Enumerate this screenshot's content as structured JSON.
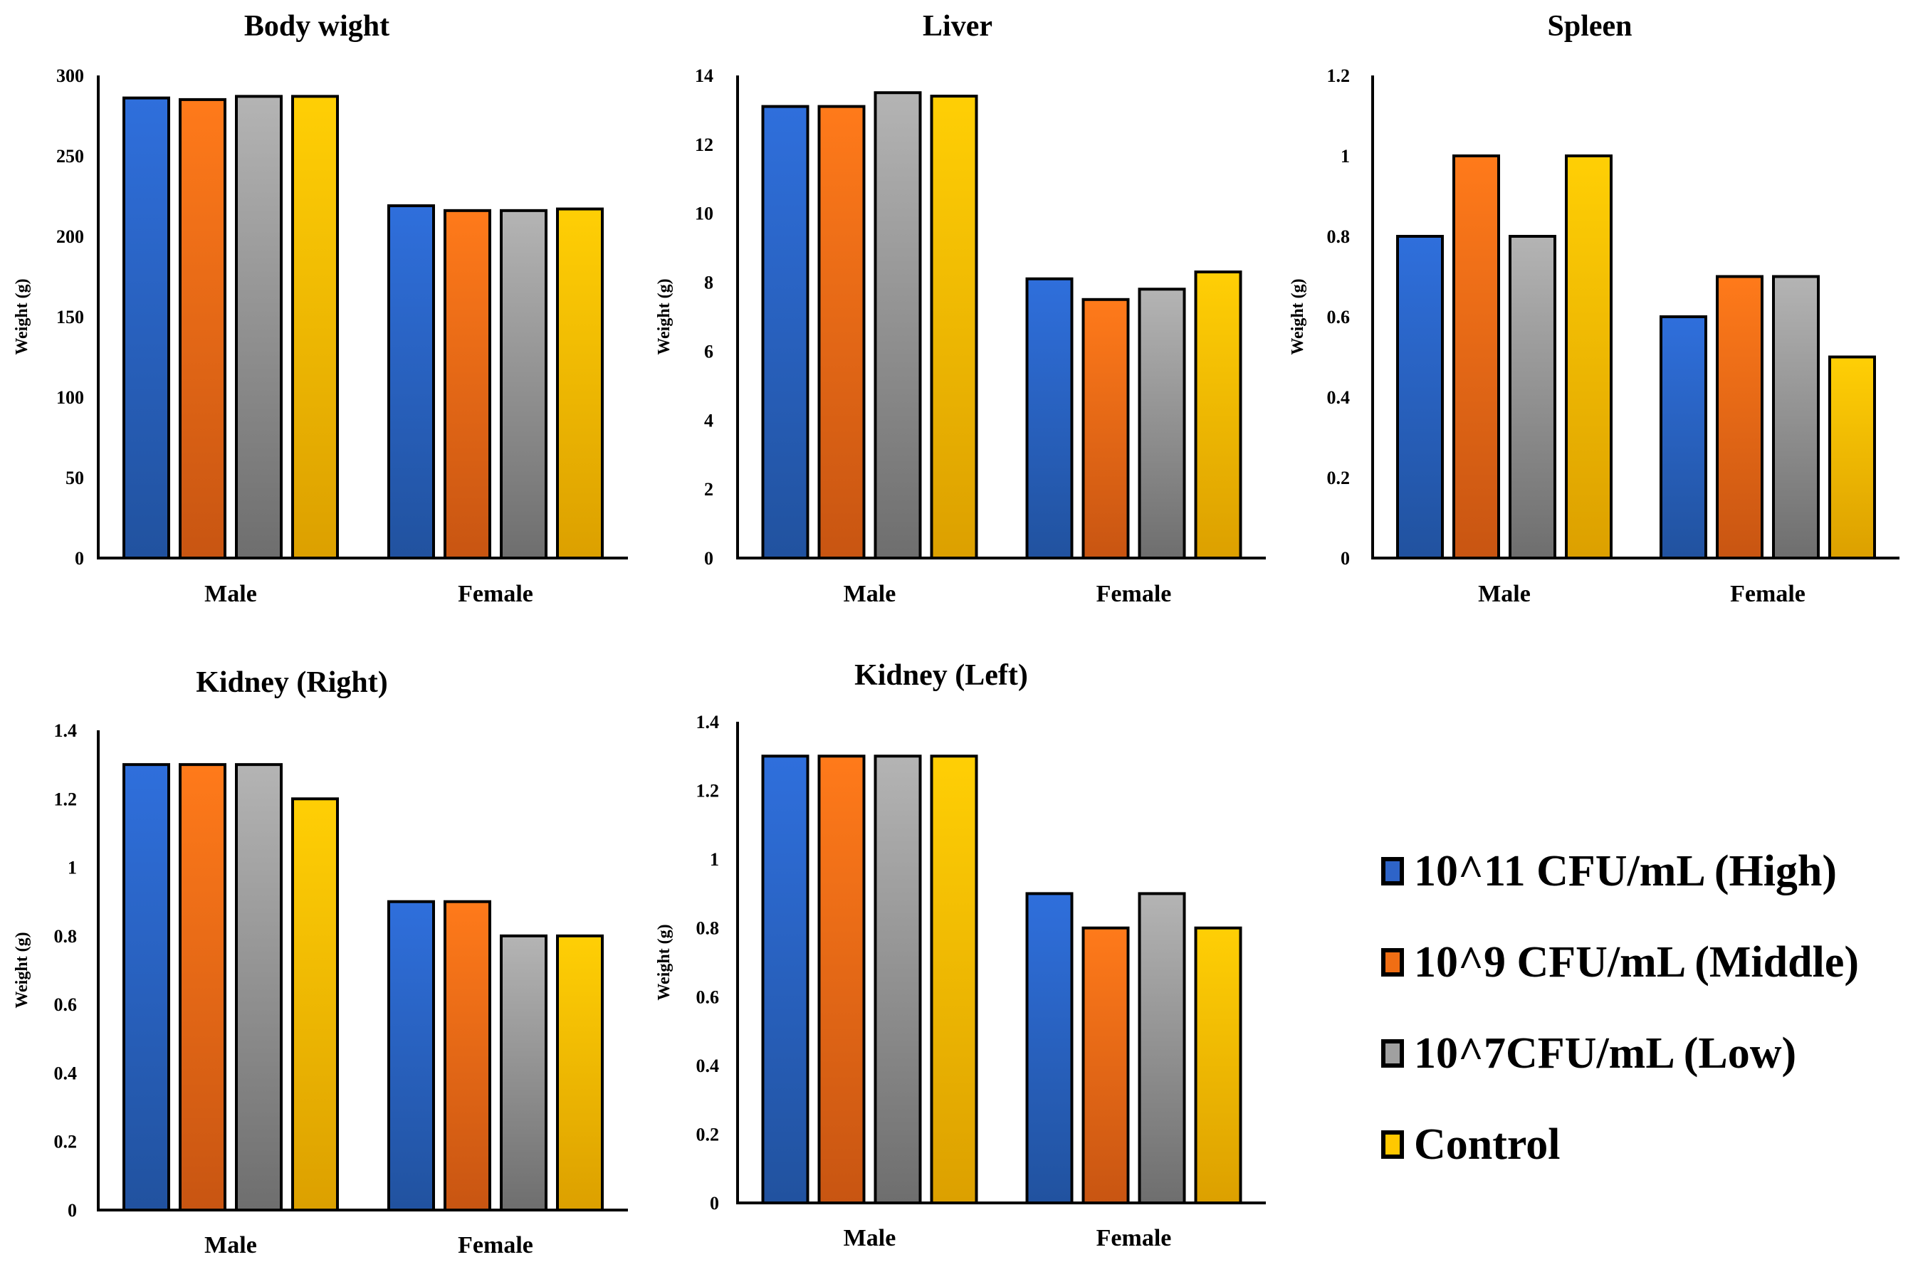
{
  "legend": {
    "items": [
      {
        "label": "10^11 CFU/mL (High)",
        "color": "#2E64C8"
      },
      {
        "label": "10^9 CFU/mL (Middle)",
        "color": "#F06E14"
      },
      {
        "label": "10^7CFU/mL (Low)",
        "color": "#A0A0A0"
      },
      {
        "label": "Control",
        "color": "#FFC800"
      }
    ]
  },
  "chart_data": [
    {
      "type": "bar",
      "title": "Body wight",
      "ylabel": "Weight (g)",
      "xlabel": "",
      "categories": [
        "Male",
        "Female"
      ],
      "ylim": [
        0,
        300
      ],
      "yticks": [
        "0",
        "50",
        "100",
        "150",
        "200",
        "250",
        "300"
      ],
      "series": [
        {
          "name": "10^11 CFU/mL (High)",
          "values": [
            286,
            219
          ]
        },
        {
          "name": "10^9 CFU/mL (Middle)",
          "values": [
            285,
            216
          ]
        },
        {
          "name": "10^7CFU/mL (Low)",
          "values": [
            287,
            216
          ]
        },
        {
          "name": "Control",
          "values": [
            287,
            217
          ]
        }
      ]
    },
    {
      "type": "bar",
      "title": "Liver",
      "ylabel": "Weight (g)",
      "xlabel": "",
      "categories": [
        "Male",
        "Female"
      ],
      "ylim": [
        0,
        14
      ],
      "yticks": [
        "0",
        "2",
        "4",
        "6",
        "8",
        "10",
        "12",
        "14"
      ],
      "series": [
        {
          "name": "10^11 CFU/mL (High)",
          "values": [
            13.1,
            8.1
          ]
        },
        {
          "name": "10^9 CFU/mL (Middle)",
          "values": [
            13.1,
            7.5
          ]
        },
        {
          "name": "10^7CFU/mL (Low)",
          "values": [
            13.5,
            7.8
          ]
        },
        {
          "name": "Control",
          "values": [
            13.4,
            8.3
          ]
        }
      ]
    },
    {
      "type": "bar",
      "title": "Spleen",
      "ylabel": "Weight (g)",
      "xlabel": "",
      "categories": [
        "Male",
        "Female"
      ],
      "ylim": [
        0,
        1.2
      ],
      "yticks": [
        "0",
        "0.2",
        "0.4",
        "0.6",
        "0.8",
        "1",
        "1.2"
      ],
      "series": [
        {
          "name": "10^11 CFU/mL (High)",
          "values": [
            0.8,
            0.6
          ]
        },
        {
          "name": "10^9 CFU/mL (Middle)",
          "values": [
            1.0,
            0.7
          ]
        },
        {
          "name": "10^7CFU/mL (Low)",
          "values": [
            0.8,
            0.7
          ]
        },
        {
          "name": "Control",
          "values": [
            1.0,
            0.5
          ]
        }
      ]
    },
    {
      "type": "bar",
      "title": "Kidney (Right)",
      "ylabel": "Weight (g)",
      "xlabel": "",
      "categories": [
        "Male",
        "Female"
      ],
      "ylim": [
        0,
        1.4
      ],
      "yticks": [
        "0",
        "0.2",
        "0.4",
        "0.6",
        "0.8",
        "1",
        "1.2",
        "1.4"
      ],
      "series": [
        {
          "name": "10^11 CFU/mL (High)",
          "values": [
            1.3,
            0.9
          ]
        },
        {
          "name": "10^9 CFU/mL (Middle)",
          "values": [
            1.3,
            0.9
          ]
        },
        {
          "name": "10^7CFU/mL (Low)",
          "values": [
            1.3,
            0.8
          ]
        },
        {
          "name": "Control",
          "values": [
            1.2,
            0.8
          ]
        }
      ]
    },
    {
      "type": "bar",
      "title": "Kidney (Left)",
      "ylabel": "Weight (g)",
      "xlabel": "",
      "categories": [
        "Male",
        "Female"
      ],
      "ylim": [
        0,
        1.4
      ],
      "yticks": [
        "0",
        "0.2",
        "0.4",
        "0.6",
        "0.8",
        "1",
        "1.2",
        "1.4"
      ],
      "series": [
        {
          "name": "10^11 CFU/mL (High)",
          "values": [
            1.3,
            0.9
          ]
        },
        {
          "name": "10^9 CFU/mL (Middle)",
          "values": [
            1.3,
            0.8
          ]
        },
        {
          "name": "10^7CFU/mL (Low)",
          "values": [
            1.3,
            0.9
          ]
        },
        {
          "name": "Control",
          "values": [
            1.3,
            0.8
          ]
        }
      ]
    }
  ]
}
